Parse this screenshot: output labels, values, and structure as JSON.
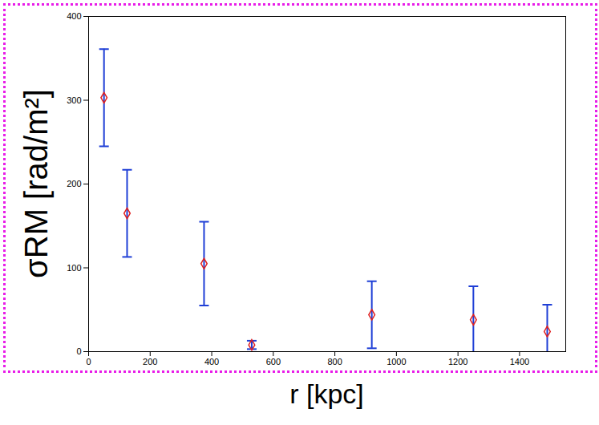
{
  "chart_data": {
    "type": "scatter",
    "x_label": "r [kpc]",
    "y_label": "σRM [rad/m²]",
    "x": [
      50,
      125,
      375,
      530,
      920,
      1250,
      1490
    ],
    "values": [
      303,
      165,
      105,
      8,
      44,
      38,
      24
    ],
    "errors": [
      58,
      52,
      50,
      5,
      40,
      40,
      32
    ],
    "color": "#e02020",
    "error_color": "#1f3fd6",
    "marker": "diamond",
    "xlim": [
      0,
      1550
    ],
    "xticks": [
      0,
      200,
      400,
      600,
      800,
      1000,
      1200,
      1400
    ],
    "ylim": [
      0,
      400
    ],
    "yticks": [
      0,
      100,
      200,
      300,
      400
    ],
    "grid": false
  }
}
